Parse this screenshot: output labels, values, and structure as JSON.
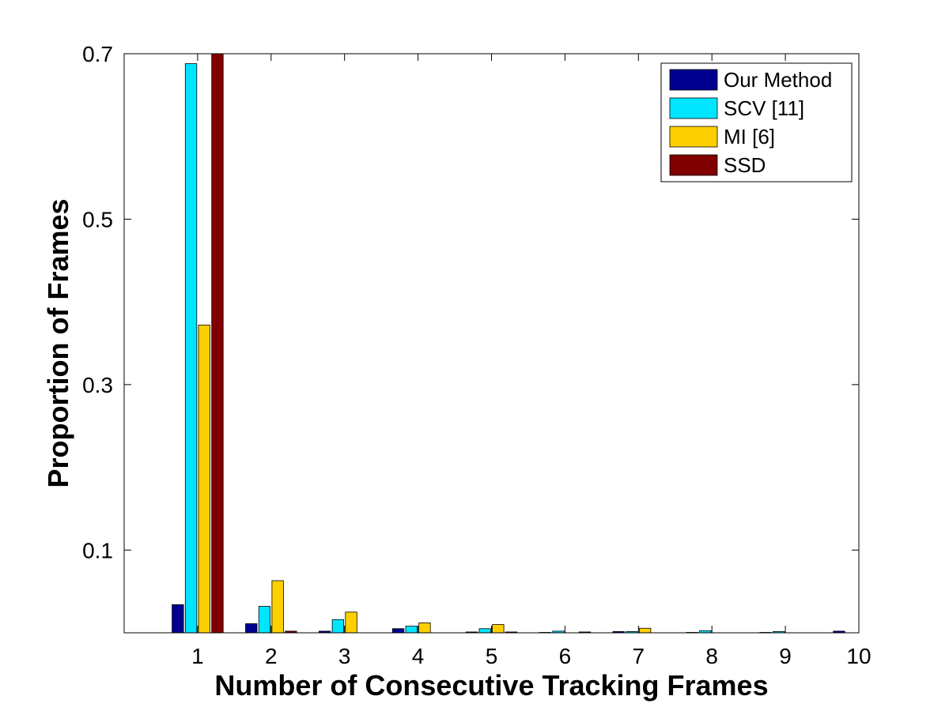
{
  "chart_data": {
    "type": "bar",
    "xlabel": "Number of Consecutive Tracking Frames",
    "ylabel": "Proportion of Frames",
    "categories": [
      "1",
      "2",
      "3",
      "4",
      "5",
      "6",
      "7",
      "8",
      "9",
      "10"
    ],
    "xlim": [
      0,
      10
    ],
    "ylim": [
      0,
      0.7
    ],
    "yticks": [
      0.1,
      0.3,
      0.5,
      0.7
    ],
    "yticklabels": [
      "0.1",
      "0.3",
      "0.5",
      "0.7"
    ],
    "xticks": [
      1,
      2,
      3,
      4,
      5,
      6,
      7,
      8,
      9,
      10
    ],
    "xticklabels": [
      "1",
      "2",
      "3",
      "4",
      "5",
      "6",
      "7",
      "8",
      "9",
      "10"
    ],
    "grid": false,
    "legend_position": "top-right",
    "series": [
      {
        "name": "Our Method",
        "color": "#00008f",
        "values": [
          0.034,
          0.011,
          0.002,
          0.005,
          0.001,
          0.0005,
          0.0015,
          0.0005,
          0.0005,
          0.002
        ]
      },
      {
        "name": "SCV [11]",
        "color": "#00e5ff",
        "values": [
          0.688,
          0.032,
          0.016,
          0.008,
          0.005,
          0.002,
          0.0015,
          0.0025,
          0.0015,
          0.0
        ]
      },
      {
        "name": "MI [6]",
        "color": "#ffd000",
        "values": [
          0.372,
          0.063,
          0.025,
          0.012,
          0.01,
          0.0,
          0.0055,
          0.0,
          0.0,
          0.0
        ]
      },
      {
        "name": "SSD",
        "color": "#800000",
        "values": [
          0.7,
          0.002,
          0.0,
          0.0,
          0.001,
          0.001,
          0.0,
          0.0,
          0.0,
          0.0
        ]
      }
    ]
  }
}
